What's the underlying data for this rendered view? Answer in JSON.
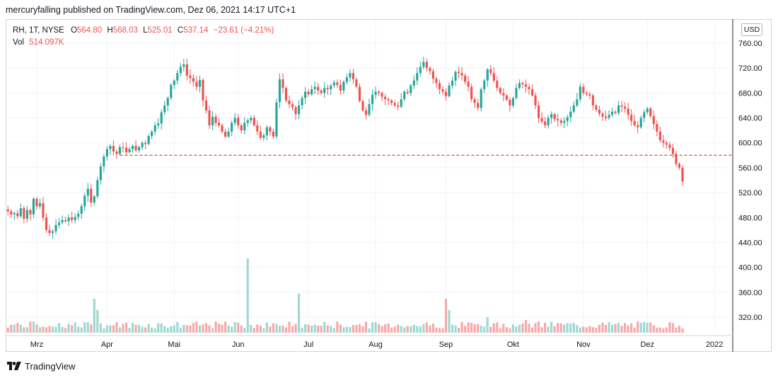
{
  "header": {
    "publisher_line": "mercuryfalling published on TradingView.com, Dez 06, 2021 14:17 UTC+1"
  },
  "legend": {
    "symbol_line": "RH, 1T, NYSE",
    "o_label": "O",
    "o_value": "564.80",
    "h_label": "H",
    "h_value": "568.03",
    "l_label": "L",
    "l_value": "525.01",
    "c_label": "C",
    "c_value": "537.14",
    "change": "−23.61 (−4.21%)",
    "vol_label": "Vol",
    "vol_value": "514.097K"
  },
  "currency_badge": "USD",
  "footer": {
    "brand": "TradingView"
  },
  "colors": {
    "up": "#26a69a",
    "down": "#ef5350",
    "vol_up": "#9ed8d1",
    "vol_down": "#f7a9a7",
    "grid": "#f0f3fa",
    "dashed_line": "#e03636"
  },
  "chart_data": {
    "type": "candlestick",
    "symbol": "RH",
    "interval": "1T",
    "exchange": "NYSE",
    "ylim": [
      295,
      775
    ],
    "y_ticks": [
      "320.00",
      "360.00",
      "400.00",
      "440.00",
      "480.00",
      "520.00",
      "560.00",
      "600.00",
      "640.00",
      "680.00",
      "720.00",
      "760.00"
    ],
    "y_tick_values": [
      320,
      360,
      400,
      440,
      480,
      520,
      560,
      600,
      640,
      680,
      720,
      760
    ],
    "x_ticks": [
      {
        "label": "Mrz",
        "index": 9
      },
      {
        "label": "Apr",
        "index": 31
      },
      {
        "label": "Mai",
        "index": 52
      },
      {
        "label": "Jun",
        "index": 72
      },
      {
        "label": "Jul",
        "index": 94
      },
      {
        "label": "Aug",
        "index": 115
      },
      {
        "label": "Sep",
        "index": 137
      },
      {
        "label": "Okt",
        "index": 158
      },
      {
        "label": "Nov",
        "index": 180
      },
      {
        "label": "Dez",
        "index": 200
      },
      {
        "label": "2022",
        "index": 221
      }
    ],
    "total_slots": 225,
    "horizontal_line": {
      "value": 580,
      "from_index": 35
    },
    "closes": [
      490,
      485,
      487,
      482,
      495,
      478,
      492,
      485,
      510,
      498,
      503,
      480,
      460,
      455,
      458,
      468,
      472,
      476,
      474,
      480,
      476,
      481,
      486,
      498,
      515,
      526,
      504,
      514,
      540,
      562,
      578,
      590,
      595,
      586,
      582,
      593,
      592,
      585,
      590,
      595,
      588,
      593,
      600,
      598,
      611,
      618,
      628,
      631,
      649,
      660,
      672,
      693,
      700,
      712,
      722,
      726,
      708,
      704,
      698,
      690,
      701,
      668,
      652,
      628,
      642,
      632,
      628,
      618,
      610,
      618,
      632,
      640,
      628,
      620,
      632,
      636,
      640,
      628,
      618,
      608,
      612,
      625,
      618,
      610,
      665,
      702,
      688,
      668,
      662,
      657,
      646,
      660,
      672,
      682,
      678,
      686,
      690,
      684,
      680,
      688,
      686,
      692,
      697,
      693,
      684,
      698,
      705,
      712,
      702,
      690,
      667,
      652,
      645,
      662,
      677,
      682,
      680,
      674,
      670,
      668,
      664,
      660,
      658,
      670,
      682,
      680,
      692,
      700,
      712,
      722,
      730,
      720,
      715,
      703,
      696,
      686,
      682,
      675,
      692,
      700,
      714,
      712,
      708,
      698,
      690,
      670,
      664,
      656,
      686,
      700,
      718,
      712,
      700,
      688,
      680,
      676,
      669,
      660,
      672,
      688,
      696,
      694,
      690,
      686,
      676,
      660,
      640,
      634,
      628,
      640,
      646,
      638,
      636,
      632,
      635,
      641,
      650,
      660,
      670,
      690,
      680,
      678,
      676,
      660,
      653,
      647,
      642,
      640,
      645,
      650,
      648,
      660,
      658,
      655,
      645,
      635,
      628,
      625,
      640,
      649,
      655,
      643,
      630,
      618,
      604,
      600,
      597,
      592,
      582,
      566,
      560,
      538
    ]
  }
}
